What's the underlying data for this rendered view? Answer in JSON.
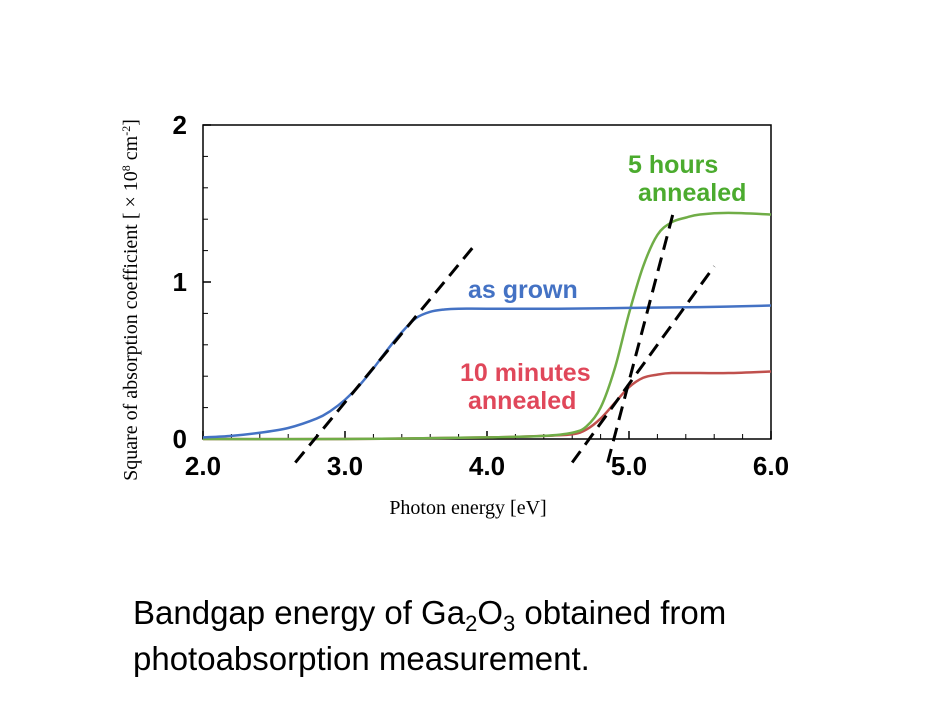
{
  "chart_data": {
    "type": "line",
    "xlabel": "Photon energy [eV]",
    "ylabel": "Square of absorption coefficient [ × 10",
    "ylabel_exp1": "8",
    "ylabel_unit": " cm",
    "ylabel_exp2": "-2",
    "ylabel_close": "]",
    "xlim": [
      2.0,
      6.0
    ],
    "ylim": [
      0,
      2
    ],
    "x_ticks": [
      "2.0",
      "3.0",
      "4.0",
      "5.0",
      "6.0"
    ],
    "y_ticks": [
      "0",
      "1",
      "2"
    ],
    "series": [
      {
        "name": "as grown",
        "color": "#4472c4",
        "x": [
          2.0,
          2.2,
          2.4,
          2.6,
          2.8,
          2.9,
          3.0,
          3.1,
          3.2,
          3.3,
          3.4,
          3.5,
          3.6,
          3.7,
          3.8,
          4.0,
          4.5,
          5.0,
          5.5,
          6.0
        ],
        "y": [
          0.01,
          0.02,
          0.04,
          0.07,
          0.13,
          0.18,
          0.25,
          0.34,
          0.45,
          0.57,
          0.68,
          0.77,
          0.81,
          0.825,
          0.83,
          0.83,
          0.83,
          0.835,
          0.84,
          0.85
        ]
      },
      {
        "name": "5 hours annealed",
        "color": "#70ad47",
        "x": [
          2.0,
          3.0,
          4.0,
          4.4,
          4.6,
          4.7,
          4.8,
          4.9,
          5.0,
          5.1,
          5.2,
          5.3,
          5.4,
          5.5,
          5.7,
          6.0
        ],
        "y": [
          0.0,
          0.0,
          0.01,
          0.02,
          0.04,
          0.08,
          0.2,
          0.45,
          0.8,
          1.1,
          1.3,
          1.38,
          1.41,
          1.43,
          1.44,
          1.43
        ]
      },
      {
        "name": "10 minutes annealed",
        "color": "#c0504d",
        "x": [
          2.0,
          3.0,
          4.0,
          4.4,
          4.6,
          4.7,
          4.8,
          4.9,
          5.0,
          5.1,
          5.2,
          5.3,
          5.5,
          5.7,
          6.0
        ],
        "y": [
          0.0,
          0.0,
          0.01,
          0.02,
          0.03,
          0.06,
          0.13,
          0.23,
          0.33,
          0.39,
          0.41,
          0.42,
          0.42,
          0.42,
          0.43
        ]
      }
    ],
    "tangent_lines": [
      {
        "x": [
          2.65,
          3.9
        ],
        "y": [
          -0.15,
          1.22
        ],
        "color": "#000000",
        "style": "dashed"
      },
      {
        "x": [
          4.85,
          5.32
        ],
        "y": [
          -0.15,
          1.47
        ],
        "color": "#000000",
        "style": "dashed"
      },
      {
        "x": [
          4.6,
          5.6
        ],
        "y": [
          -0.15,
          1.1
        ],
        "color": "#000000",
        "style": "dashed"
      }
    ],
    "annotations": {
      "as_grown": "as grown",
      "five_hours_1": "5 hours",
      "five_hours_2": "annealed",
      "ten_min_1": "10 minutes",
      "ten_min_2": "annealed"
    }
  },
  "caption": {
    "part1": "Bandgap energy of Ga",
    "sub1": "2",
    "part2": "O",
    "sub2": "3",
    "part3": " obtained from",
    "line2": "photoabsorption measurement."
  }
}
